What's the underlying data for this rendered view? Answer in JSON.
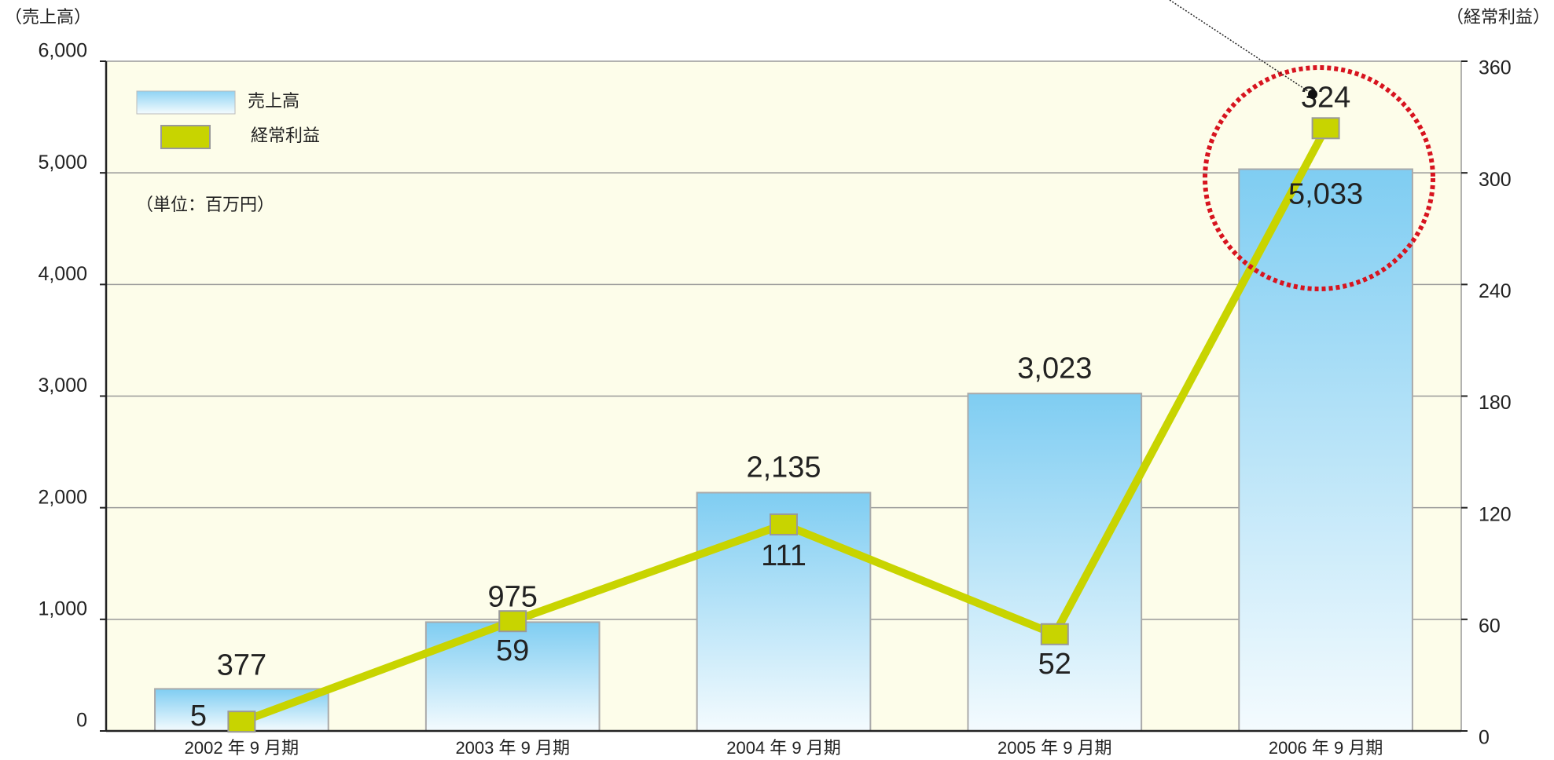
{
  "chart_data": {
    "type": "bar_line",
    "y_axis_label": "（売上高）",
    "y2_axis_label": "（経常利益）",
    "unit_note": "（単位：百万円）",
    "categories": [
      "2002 年 9 月期",
      "2003 年 9 月期",
      "2004 年 9 月期",
      "2005 年 9 月期",
      "2006 年 9 月期"
    ],
    "series": [
      {
        "name": "売上高",
        "type": "bar",
        "color": "#7fcdf2",
        "values": [
          377,
          975,
          2135,
          3023,
          5033
        ],
        "value_labels": [
          "377",
          "975",
          "2,135",
          "3,023",
          "5,033"
        ]
      },
      {
        "name": "経常利益",
        "type": "line",
        "axis": "y2",
        "color": "#c8d400",
        "values": [
          5,
          59,
          111,
          52,
          324
        ]
      }
    ],
    "ylim": [
      0,
      6000
    ],
    "yticks": [
      0,
      {
        "value": 1000,
        "label": "1,000"
      },
      {
        "value": 2000,
        "label": "2,000"
      },
      {
        "value": 3000,
        "label": "3,000"
      },
      {
        "value": 4000,
        "label": "4,000"
      },
      {
        "value": 5000,
        "label": "5,000"
      },
      {
        "value": 6000,
        "label": "6,000"
      }
    ],
    "y2lim": [
      0,
      360
    ],
    "y2ticks": [
      0,
      60,
      120,
      180,
      240,
      300,
      360
    ],
    "grid": true
  }
}
